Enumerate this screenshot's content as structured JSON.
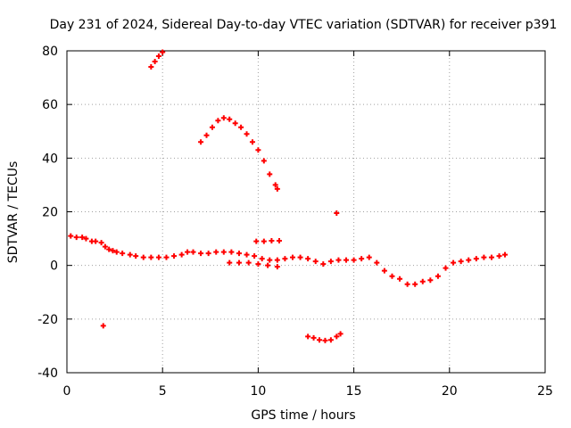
{
  "chart_data": {
    "type": "scatter",
    "title": "Day 231 of 2024, Sidereal Day-to-day VTEC variation (SDTVAR) for receiver p391",
    "xlabel": "GPS time / hours",
    "ylabel": "SDTVAR / TECUs",
    "xlim": [
      0,
      25
    ],
    "ylim": [
      -40,
      80
    ],
    "xticks": [
      0,
      5,
      10,
      15,
      20,
      25
    ],
    "yticks": [
      -40,
      -20,
      0,
      20,
      40,
      60,
      80
    ],
    "grid": true,
    "marker": "+",
    "color": "#ff0000",
    "series": [
      {
        "name": "main-band",
        "points": [
          [
            0.2,
            11
          ],
          [
            0.5,
            10.5
          ],
          [
            0.8,
            10.5
          ],
          [
            1.0,
            10
          ],
          [
            1.3,
            9
          ],
          [
            1.5,
            9
          ],
          [
            1.8,
            8.5
          ],
          [
            2.0,
            7
          ],
          [
            2.2,
            6
          ],
          [
            2.4,
            5.5
          ],
          [
            2.6,
            5
          ],
          [
            2.9,
            4.5
          ],
          [
            3.3,
            4
          ],
          [
            3.6,
            3.5
          ],
          [
            4.0,
            3
          ],
          [
            4.4,
            3
          ],
          [
            4.8,
            3
          ],
          [
            5.2,
            3
          ],
          [
            5.6,
            3.5
          ],
          [
            6.0,
            4
          ],
          [
            6.3,
            5
          ],
          [
            6.6,
            5
          ],
          [
            7.0,
            4.5
          ],
          [
            7.4,
            4.5
          ],
          [
            7.8,
            5
          ],
          [
            8.2,
            5
          ],
          [
            8.6,
            5
          ],
          [
            9.0,
            4.5
          ],
          [
            9.4,
            4
          ],
          [
            9.8,
            3.5
          ],
          [
            10.2,
            2.5
          ],
          [
            10.6,
            2
          ],
          [
            11.0,
            2
          ],
          [
            11.4,
            2.5
          ],
          [
            11.8,
            3
          ],
          [
            12.2,
            3
          ],
          [
            12.6,
            2.5
          ],
          [
            13.0,
            1.5
          ],
          [
            13.4,
            0.5
          ],
          [
            13.8,
            1.5
          ],
          [
            14.2,
            2
          ],
          [
            14.6,
            2
          ],
          [
            15.0,
            2
          ],
          [
            15.4,
            2.5
          ],
          [
            15.8,
            3
          ],
          [
            16.2,
            1
          ],
          [
            16.6,
            -2
          ],
          [
            17.0,
            -4
          ],
          [
            17.4,
            -5
          ],
          [
            17.8,
            -7
          ],
          [
            18.2,
            -7
          ],
          [
            18.6,
            -6
          ],
          [
            19.0,
            -5.5
          ],
          [
            19.4,
            -4
          ],
          [
            19.8,
            -1
          ],
          [
            20.2,
            1
          ],
          [
            20.6,
            1.5
          ],
          [
            21.0,
            2
          ],
          [
            21.4,
            2.5
          ],
          [
            21.8,
            3
          ],
          [
            22.2,
            3
          ],
          [
            22.6,
            3.5
          ],
          [
            22.9,
            4
          ]
        ]
      },
      {
        "name": "lower-band",
        "points": [
          [
            8.5,
            1
          ],
          [
            9.0,
            1
          ],
          [
            9.5,
            1
          ],
          [
            10.0,
            0.5
          ],
          [
            10.5,
            0
          ],
          [
            11.0,
            -0.5
          ]
        ]
      },
      {
        "name": "upper-segment-10h",
        "points": [
          [
            9.9,
            9
          ],
          [
            10.3,
            9
          ],
          [
            10.7,
            9.2
          ],
          [
            11.1,
            9.2
          ]
        ]
      },
      {
        "name": "arc-early",
        "points": [
          [
            4.4,
            74
          ],
          [
            4.6,
            76
          ],
          [
            4.8,
            78
          ],
          [
            5.0,
            79.5
          ]
        ]
      },
      {
        "name": "arc-mid",
        "points": [
          [
            7.0,
            46
          ],
          [
            7.3,
            48.5
          ],
          [
            7.6,
            51.5
          ],
          [
            7.9,
            54
          ],
          [
            8.2,
            55
          ],
          [
            8.5,
            54.5
          ],
          [
            8.8,
            53
          ],
          [
            9.1,
            51.5
          ],
          [
            9.4,
            49
          ],
          [
            9.7,
            46
          ],
          [
            10.0,
            43
          ],
          [
            10.3,
            39
          ],
          [
            10.6,
            34
          ],
          [
            10.9,
            30
          ],
          [
            11.0,
            28.5
          ]
        ]
      },
      {
        "name": "arc-negative",
        "points": [
          [
            12.6,
            -26.5
          ],
          [
            12.9,
            -27
          ],
          [
            13.2,
            -27.8
          ],
          [
            13.5,
            -28
          ],
          [
            13.8,
            -27.8
          ],
          [
            14.1,
            -26.5
          ],
          [
            14.3,
            -25.5
          ]
        ]
      },
      {
        "name": "outliers",
        "points": [
          [
            1.9,
            -22.5
          ],
          [
            14.1,
            19.5
          ]
        ]
      }
    ]
  }
}
